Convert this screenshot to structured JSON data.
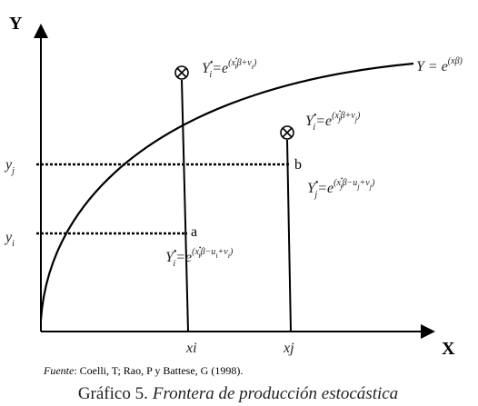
{
  "axes": {
    "y": "Y",
    "x": "X"
  },
  "frontier_label": [
    {
      "t": "Y = e"
    },
    {
      "t": "(xβ)",
      "pos": "sup"
    }
  ],
  "points": [
    {
      "label": "a",
      "y_label": [
        {
          "t": "y"
        },
        {
          "t": "i",
          "pos": "sub"
        }
      ],
      "x_label": [
        {
          "t": "x"
        },
        {
          "t": "i"
        }
      ],
      "observed": [
        {
          "t": "Y"
        },
        {
          "t": "•",
          "pos": "sup"
        },
        {
          "t": "i",
          "pos": "sub"
        },
        {
          "t": "=e"
        },
        {
          "t": "(x",
          "pos": "sup"
        },
        {
          "t": "•",
          "pos": "supsup"
        },
        {
          "t": "i",
          "pos": "supsub"
        },
        {
          "t": "β−u",
          "pos": "sup"
        },
        {
          "t": "i",
          "pos": "supsub"
        },
        {
          "t": "+v",
          "pos": "sup"
        },
        {
          "t": "i",
          "pos": "supsub"
        },
        {
          "t": ")",
          "pos": "sup"
        }
      ],
      "frontier": [
        {
          "t": "Y"
        },
        {
          "t": "•",
          "pos": "sup"
        },
        {
          "t": "i",
          "pos": "sub"
        },
        {
          "t": "=e"
        },
        {
          "t": "(x",
          "pos": "sup"
        },
        {
          "t": "•",
          "pos": "supsup"
        },
        {
          "t": "i",
          "pos": "supsub"
        },
        {
          "t": "β+v",
          "pos": "sup"
        },
        {
          "t": "i",
          "pos": "supsub"
        },
        {
          "t": ")",
          "pos": "sup"
        }
      ]
    },
    {
      "label": "b",
      "y_label": [
        {
          "t": "y"
        },
        {
          "t": "j",
          "pos": "sub"
        }
      ],
      "x_label": [
        {
          "t": "x"
        },
        {
          "t": "j"
        }
      ],
      "observed": [
        {
          "t": "Y"
        },
        {
          "t": "•",
          "pos": "sup"
        },
        {
          "t": "j",
          "pos": "sub"
        },
        {
          "t": "=e"
        },
        {
          "t": "(x",
          "pos": "sup"
        },
        {
          "t": "•",
          "pos": "supsup"
        },
        {
          "t": "j",
          "pos": "supsub"
        },
        {
          "t": "β−u",
          "pos": "sup"
        },
        {
          "t": "j",
          "pos": "supsub"
        },
        {
          "t": "+v",
          "pos": "sup"
        },
        {
          "t": "j",
          "pos": "supsub"
        },
        {
          "t": ")",
          "pos": "sup"
        }
      ],
      "frontier": [
        {
          "t": "Y"
        },
        {
          "t": "•",
          "pos": "sup"
        },
        {
          "t": "i",
          "pos": "sub"
        },
        {
          "t": "=e"
        },
        {
          "t": "(x",
          "pos": "sup"
        },
        {
          "t": "•",
          "pos": "supsup"
        },
        {
          "t": "j",
          "pos": "supsub"
        },
        {
          "t": "β+v",
          "pos": "sup"
        },
        {
          "t": "j",
          "pos": "supsub"
        },
        {
          "t": ")",
          "pos": "sup"
        }
      ]
    }
  ],
  "source": {
    "label": "Fuente",
    "text": ": Coelli, T; Rao, P y Battese, G (1998)."
  },
  "caption": {
    "label": "Gráfico 5.",
    "text": "Frontera de producción estocástica"
  }
}
